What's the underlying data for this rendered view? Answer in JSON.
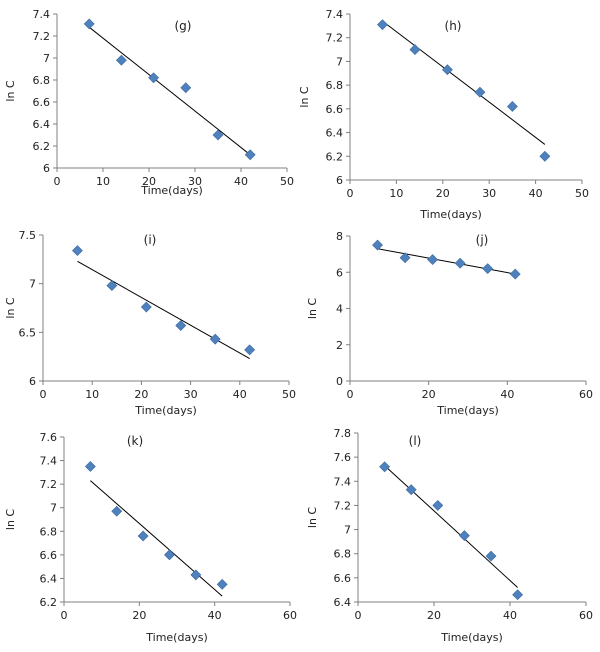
{
  "chart_data": [
    {
      "type": "scatter",
      "panel": "(g)",
      "xlabel": "Time(days)",
      "ylabel": "ln C",
      "xlim": [
        0,
        50
      ],
      "ylim": [
        6,
        7.4
      ],
      "xticks": [
        0,
        10,
        20,
        30,
        40,
        50
      ],
      "yticks": [
        "6",
        "6.2",
        "6.4",
        "6.6",
        "6.8",
        "7",
        "7.2",
        "7.4"
      ],
      "grid": false,
      "x": [
        7,
        14,
        21,
        28,
        35,
        42
      ],
      "y": [
        7.31,
        6.98,
        6.82,
        6.73,
        6.3,
        6.12
      ],
      "trendline": [
        [
          7,
          7.28
        ],
        [
          42,
          6.12
        ]
      ]
    },
    {
      "type": "scatter",
      "panel": "(h)",
      "xlabel": "Time(days)",
      "ylabel": "ln C",
      "xlim": [
        0,
        50
      ],
      "ylim": [
        6,
        7.4
      ],
      "xticks": [
        0,
        10,
        20,
        30,
        40,
        50
      ],
      "yticks": [
        "6",
        "6.2",
        "6.4",
        "6.6",
        "6.8",
        "7",
        "7.2",
        "7.4"
      ],
      "grid": false,
      "x": [
        7,
        14,
        21,
        28,
        35,
        42
      ],
      "y": [
        7.31,
        7.1,
        6.93,
        6.74,
        6.62,
        6.2
      ],
      "trendline": [
        [
          7,
          7.34
        ],
        [
          42,
          6.3
        ]
      ]
    },
    {
      "type": "scatter",
      "panel": "(i)",
      "xlabel": "Time(days)",
      "ylabel": "ln C",
      "xlim": [
        0,
        50
      ],
      "ylim": [
        6,
        7.5
      ],
      "xticks": [
        0,
        10,
        20,
        30,
        40,
        50
      ],
      "yticks": [
        "6",
        "6.5",
        "7",
        "7.5"
      ],
      "grid": false,
      "x": [
        7,
        14,
        21,
        28,
        35,
        42
      ],
      "y": [
        7.34,
        6.98,
        6.76,
        6.57,
        6.43,
        6.32
      ],
      "trendline": [
        [
          7,
          7.23
        ],
        [
          42,
          6.23
        ]
      ]
    },
    {
      "type": "scatter",
      "panel": "(j)",
      "xlabel": "Time(days)",
      "ylabel": "ln C",
      "xlim": [
        0,
        60
      ],
      "ylim": [
        0,
        8
      ],
      "xticks": [
        0,
        20,
        40,
        60
      ],
      "yticks": [
        "0",
        "2",
        "4",
        "6",
        "8"
      ],
      "grid": false,
      "x": [
        7,
        14,
        21,
        28,
        35,
        42
      ],
      "y": [
        7.5,
        6.8,
        6.7,
        6.5,
        6.2,
        5.9
      ],
      "trendline": [
        [
          7,
          7.3
        ],
        [
          42,
          5.9
        ]
      ]
    },
    {
      "type": "scatter",
      "panel": "(k)",
      "xlabel": "Time(days)",
      "ylabel": "ln C",
      "xlim": [
        0,
        60
      ],
      "ylim": [
        6.2,
        7.6
      ],
      "xticks": [
        0,
        20,
        40,
        60
      ],
      "yticks": [
        "6.2",
        "6.4",
        "6.6",
        "6.8",
        "7",
        "7.2",
        "7.4",
        "7.6"
      ],
      "grid": false,
      "x": [
        7,
        14,
        21,
        28,
        35,
        42
      ],
      "y": [
        7.35,
        6.97,
        6.76,
        6.6,
        6.43,
        6.35
      ],
      "trendline": [
        [
          7,
          7.23
        ],
        [
          42,
          6.25
        ]
      ]
    },
    {
      "type": "scatter",
      "panel": "(l)",
      "xlabel": "Time(days)",
      "ylabel": "ln C",
      "xlim": [
        0,
        60
      ],
      "ylim": [
        6.4,
        7.8
      ],
      "xticks": [
        0,
        20,
        40,
        60
      ],
      "yticks": [
        "6.4",
        "6.6",
        "6.8",
        "7",
        "7.2",
        "7.4",
        "7.6",
        "7.8"
      ],
      "grid": false,
      "x": [
        7,
        14,
        21,
        28,
        35,
        42
      ],
      "y": [
        7.52,
        7.33,
        7.2,
        6.95,
        6.78,
        6.46
      ],
      "trendline": [
        [
          7,
          7.53
        ],
        [
          42,
          6.52
        ]
      ]
    }
  ],
  "colors": {
    "marker_fill": "#4f81bd",
    "marker_stroke": "#3a6aa3",
    "axis": "#808080",
    "trendline": "#000000"
  }
}
